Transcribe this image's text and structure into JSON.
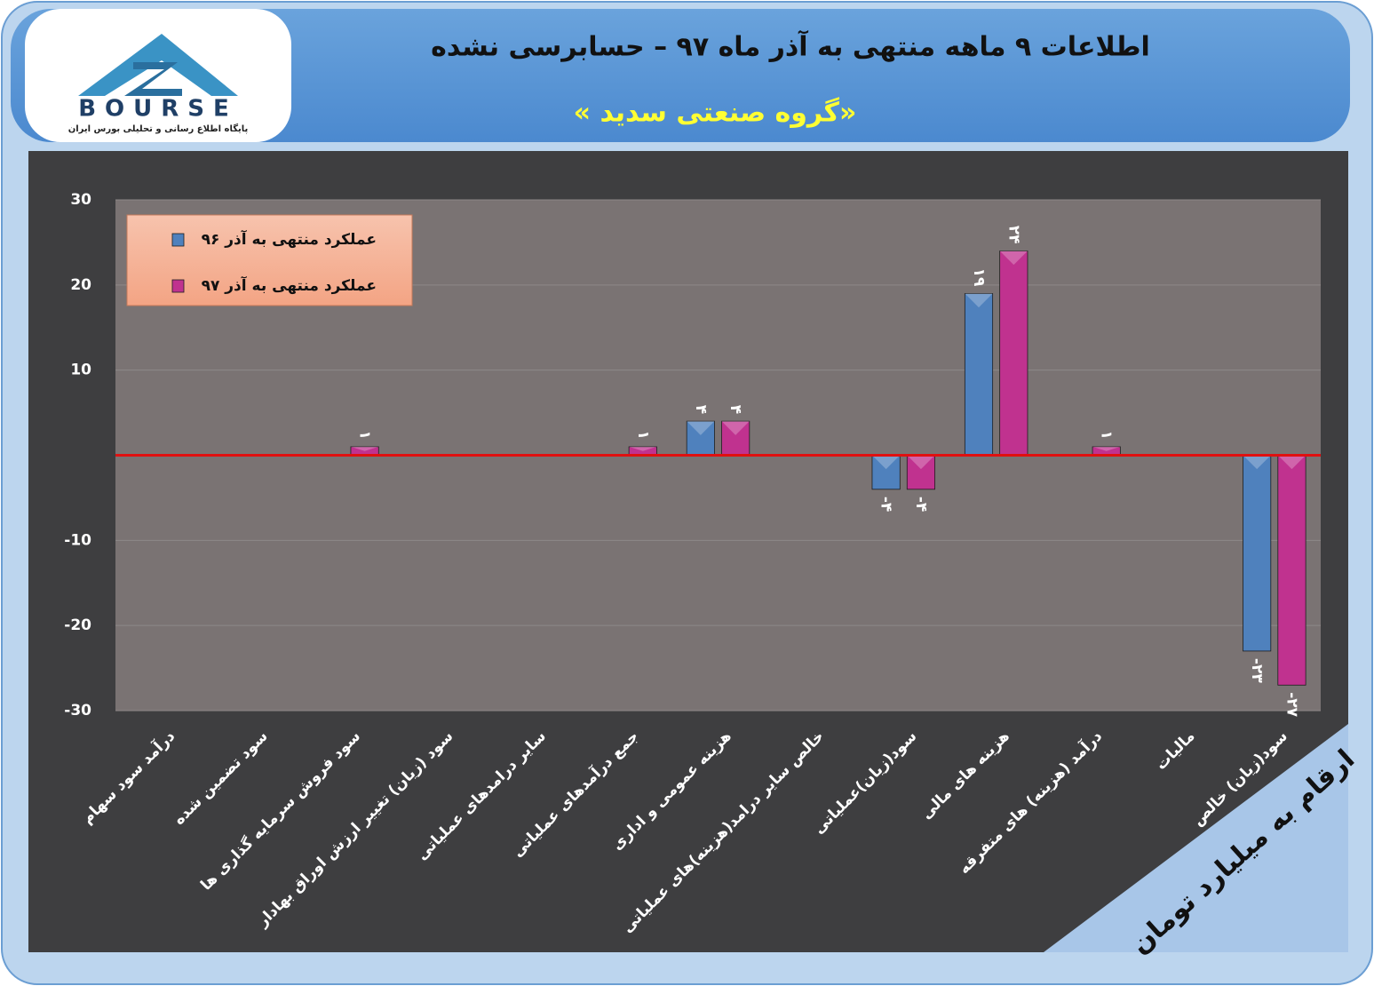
{
  "header": {
    "title": "اطلاعات ۹ ماهه منتهی به آذر ماه ۹۷ – حسابرسی نشده",
    "subtitle": "«گروه صنعتی سدید »",
    "logo_text": "BOURSE",
    "logo_caption": "پایگاه اطلاع رسانی و تحلیلی بورس ایران"
  },
  "chart_data": {
    "type": "bar",
    "note": "ارقام به میلیارد تومان",
    "categories": [
      "درآمد سود سهام",
      "سود تضمین شده",
      "سود فروش سرمایه گذاری ها",
      "سود (زیان) تغییر ارزش اوراق بهادار",
      "سایر درامدهای عملیاتی",
      "جمع درآمدهای عملیاتی",
      "هزینه عمومی و اداری",
      "خالص سایر درامد(هزینه)های عملیاتی",
      "سود(زیان)عملیاتی",
      "هزینه های مالی",
      "درآمد (هزینه) های متفرقه",
      "مالیات",
      "سود(زیان) خالص"
    ],
    "series": [
      {
        "name": "عملکرد منتهی به آذر ۹۶",
        "color": "#4f81bd",
        "values": [
          0,
          0,
          0,
          0,
          0,
          0,
          4,
          0,
          -4,
          19,
          0,
          0,
          -23
        ],
        "value_labels": [
          null,
          null,
          null,
          null,
          null,
          null,
          "۴",
          null,
          "-۴",
          "۱۹",
          null,
          null,
          "-۲۳"
        ]
      },
      {
        "name": "عملکرد منتهی به آذر ۹۷",
        "color": "#c0328f",
        "values": [
          0,
          0,
          1,
          0,
          0,
          1,
          4,
          0,
          -4,
          24,
          1,
          0,
          -27
        ],
        "value_labels": [
          null,
          null,
          "۱",
          null,
          null,
          "۱",
          "۴",
          null,
          "-۴",
          "۲۴",
          "۱",
          null,
          "-۲۷"
        ]
      }
    ],
    "ylim": [
      -30,
      30
    ],
    "yticks": [
      -30,
      -20,
      -10,
      10,
      20,
      30
    ],
    "grid": true,
    "legend": "upper-left"
  }
}
